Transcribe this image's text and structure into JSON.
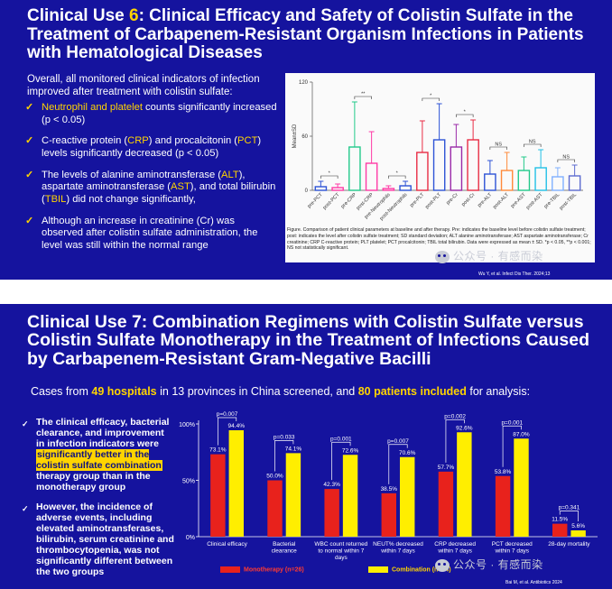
{
  "slide1": {
    "title_prefix": "Clinical Use ",
    "title_number": "6",
    "title_rest": ": Clinical Efficacy and Safety of Colistin Sulfate in the Treatment of Carbapenem-Resistant Organism Infections in Patients with Hematological Diseases",
    "intro": "Overall, all monitored clinical indicators of infection improved after treatment with colistin sulfate:",
    "bullets": [
      {
        "hl": "Neutrophil and platelet",
        "text": " counts significantly increased (p < 0.05)"
      },
      {
        "a": "C-reactive protein (",
        "hl1": "CRP",
        "b": ") and procalcitonin (",
        "hl2": "PCT",
        "c": ") levels significantly decreased (p < 0.05)"
      },
      {
        "a": "The levels of alanine aminotransferase (",
        "hl1": "ALT",
        "b": "), aspartate aminotransferase (",
        "hl2": "AST",
        "c": "), and total bilirubin (",
        "hl3": "TBIL",
        "d": ") did not change significantly,"
      },
      {
        "text": "Although an increase in creatinine (Cr) was observed after colistin sulfate administration, the level was still within the normal range"
      }
    ],
    "caption": "Figure. Comparison of patient clinical parameters at baseline and after therapy. Pre: indicates the baseline level before colistin sulfate treatment; post: indicates the level after colistin sulfate treatment; SD standard deviation; ALT alanine aminotransferase; AST aspartate aminotransferase; Cr creatinine; CRP C-reactive protein; PLT platelet; PCT procalcitonin; TBIL total bilirubin. Data were expressed as mean ± SD. *p < 0.05, **p < 0.001; NS not statistically significant.",
    "citation": "Wu Y, et al. Infect Dis Ther. 2024;13",
    "watermark": "公众号 · 有感而染"
  },
  "chart1": {
    "type": "bar",
    "ylabel": "Mean±SD",
    "ylim": [
      0,
      120
    ],
    "yticks": [
      0,
      60,
      120
    ],
    "categories": [
      "pre-PCT",
      "post-PCT",
      "pre-CRP",
      "post-CRP",
      "pre-Neutrophils",
      "post-Neutrophils",
      "pre-PLT",
      "post-PLT",
      "pre-Cr",
      "post-Cr",
      "pre-ALT",
      "post-ALT",
      "pre-AST",
      "post-AST",
      "pre-TBIL",
      "post-TBIL"
    ],
    "values": [
      4,
      3,
      48,
      30,
      2,
      5,
      42,
      56,
      48,
      56,
      18,
      22,
      22,
      25,
      15,
      16
    ],
    "errors": [
      6,
      4,
      50,
      35,
      3,
      5,
      35,
      40,
      25,
      22,
      15,
      20,
      15,
      20,
      10,
      12
    ],
    "colors": [
      "#2d53d6",
      "#ff3aa6",
      "#22c98a",
      "#ff3aa6",
      "#ff3aa6",
      "#2d53d6",
      "#e82d45",
      "#2d53d6",
      "#9a2aa8",
      "#e82d45",
      "#2d53d6",
      "#ff8a3a",
      "#22c98a",
      "#22c0e6",
      "#7fb0ff",
      "#5c6bd0"
    ],
    "significance": [
      {
        "pair": [
          0,
          1
        ],
        "label": "*"
      },
      {
        "pair": [
          2,
          3
        ],
        "label": "**"
      },
      {
        "pair": [
          4,
          5
        ],
        "label": "*"
      },
      {
        "pair": [
          6,
          7
        ],
        "label": "*"
      },
      {
        "pair": [
          8,
          9
        ],
        "label": "*"
      },
      {
        "pair": [
          10,
          11
        ],
        "label": "NS"
      },
      {
        "pair": [
          12,
          13
        ],
        "label": "NS"
      },
      {
        "pair": [
          14,
          15
        ],
        "label": "NS"
      }
    ]
  },
  "slide2": {
    "title": "Clinical Use 7: Combination Regimens with Colistin Sulfate versus Colistin Sulfate Monotherapy in the Treatment of Infections Caused by Carbapenem-Resistant Gram-Negative Bacilli",
    "intro_a": "Cases from ",
    "intro_b": "49 hospitals",
    "intro_c": " in 13 provinces in China screened, and ",
    "intro_d": "80 patients included",
    "intro_e": " for analysis:",
    "bullet1_a": "The clinical efficacy, bacterial clearance, and improvement in infection indicators were ",
    "bullet1_hl": "significantly better in the colistin sulfate combination",
    "bullet1_b": " therapy group than in the monotherapy group",
    "bullet2": "However, the incidence of adverse events, including elevated aminotransferases, bilirubin, serum creatinine and thrombocytopenia, was not significantly different between the two groups",
    "legend_mono": "Monotherapy (n=26)",
    "legend_comb": "Combination (n=54)",
    "citation": "Bai M, et al. Antibiotics 2024",
    "watermark": "公众号 · 有感而染"
  },
  "chart2": {
    "type": "bar",
    "ylim": [
      0,
      100
    ],
    "yticks": [
      "0%",
      "50%",
      "100%"
    ],
    "categories": [
      "Clinical efficacy",
      "Bacterial clearance",
      "WBC count returned to normal within 7 days",
      "NEUT% decreased within 7 days",
      "CRP decreased within 7 days",
      "PCT decreased within 7 days",
      "28-day mortality"
    ],
    "series": [
      {
        "name": "Monotherapy (n=26)",
        "color": "#e8221c",
        "values": [
          73.1,
          50.0,
          42.3,
          38.5,
          57.7,
          53.8,
          11.5
        ],
        "labels": [
          "73.1%",
          "50.0%",
          "42.3%",
          "38.5%",
          "57.7%",
          "53.8%",
          "11.5%"
        ]
      },
      {
        "name": "Combination (n=54)",
        "color": "#ffee00",
        "values": [
          94.4,
          74.1,
          72.6,
          70.6,
          92.6,
          87.0,
          5.6
        ],
        "labels": [
          "94.4%",
          "74.1%",
          "72.6%",
          "70.6%",
          "92.6%",
          "87.0%",
          "5.6%"
        ]
      }
    ],
    "pvalues": [
      "p=0.007",
      "p=0.033",
      "p=0.001",
      "p=0.007",
      "p=0.002",
      "p=0.001",
      "p=0.341"
    ]
  }
}
